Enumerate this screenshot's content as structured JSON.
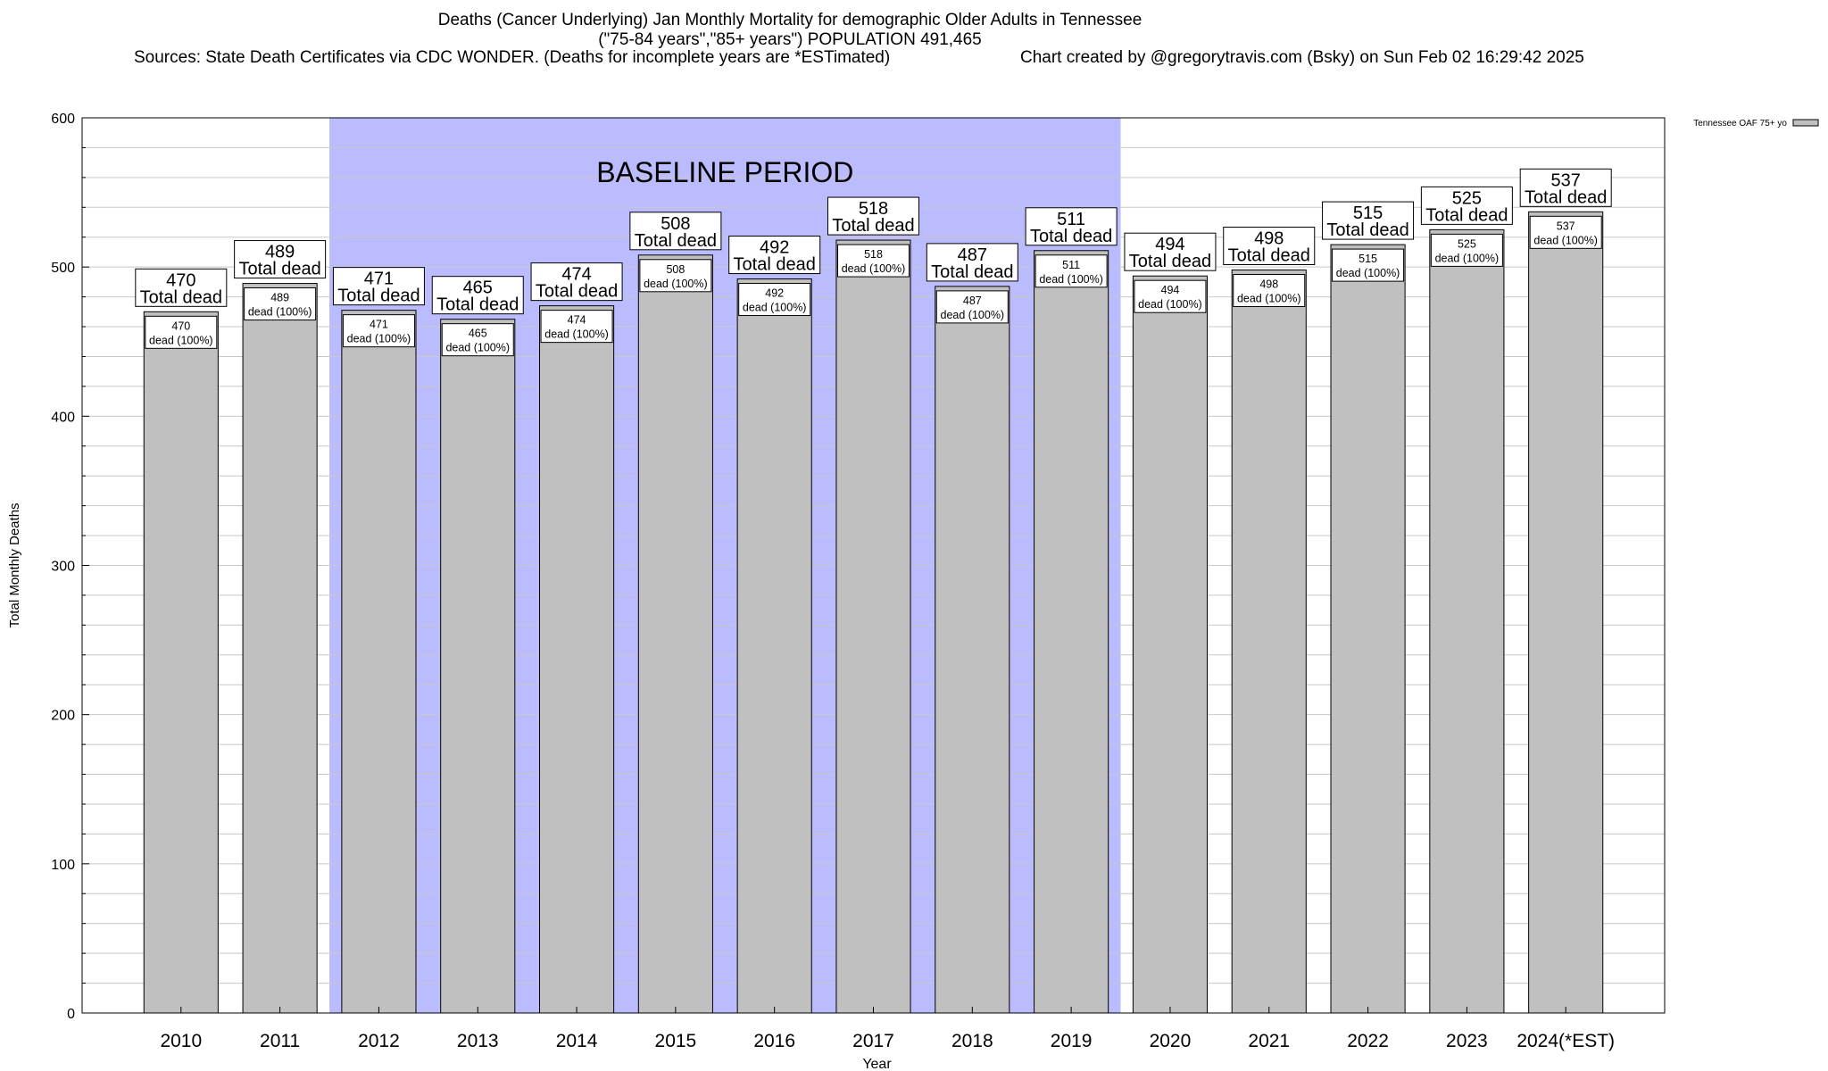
{
  "chart_data": {
    "type": "bar",
    "title_lines": [
      "Deaths (Cancer Underlying) Jan Monthly Mortality for demographic Older Adults in Tennessee",
      "(\"75-84 years\",\"85+ years\") POPULATION 491,465"
    ],
    "sources": "Sources: State Death Certificates via CDC WONDER. (Deaths for incomplete years are *ESTimated)",
    "credit": "Chart created by @gregorytravis.com (Bsky) on Sun Feb 02 16:29:42 2025",
    "xlabel": "Year",
    "ylabel": "Total Monthly Deaths",
    "ylim": [
      0,
      600
    ],
    "yticks": [
      0,
      100,
      200,
      300,
      400,
      500,
      600
    ],
    "minor_grid_step": 20,
    "grid": true,
    "legend": {
      "placement": "top-right",
      "label": "Tennessee OAF 75+ yo"
    },
    "categories": [
      "2010",
      "2011",
      "2012",
      "2013",
      "2014",
      "2015",
      "2016",
      "2017",
      "2018",
      "2019",
      "2020",
      "2021",
      "2022",
      "2023",
      "2024(*EST)"
    ],
    "series": [
      {
        "name": "Tennessee OAF 75+ yo",
        "values": [
          470,
          489,
          471,
          465,
          474,
          508,
          492,
          518,
          487,
          511,
          494,
          498,
          515,
          525,
          537
        ]
      }
    ],
    "bar_label_suffix_big": "Total dead",
    "bar_label_suffix_small": "dead (100%)",
    "baseline": {
      "label": "BASELINE PERIOD",
      "start": "2012",
      "end": "2019"
    },
    "colors": {
      "bar": "#c0c0c0",
      "baseline": "#bbbbff",
      "grid": "#c8c8c8"
    }
  }
}
